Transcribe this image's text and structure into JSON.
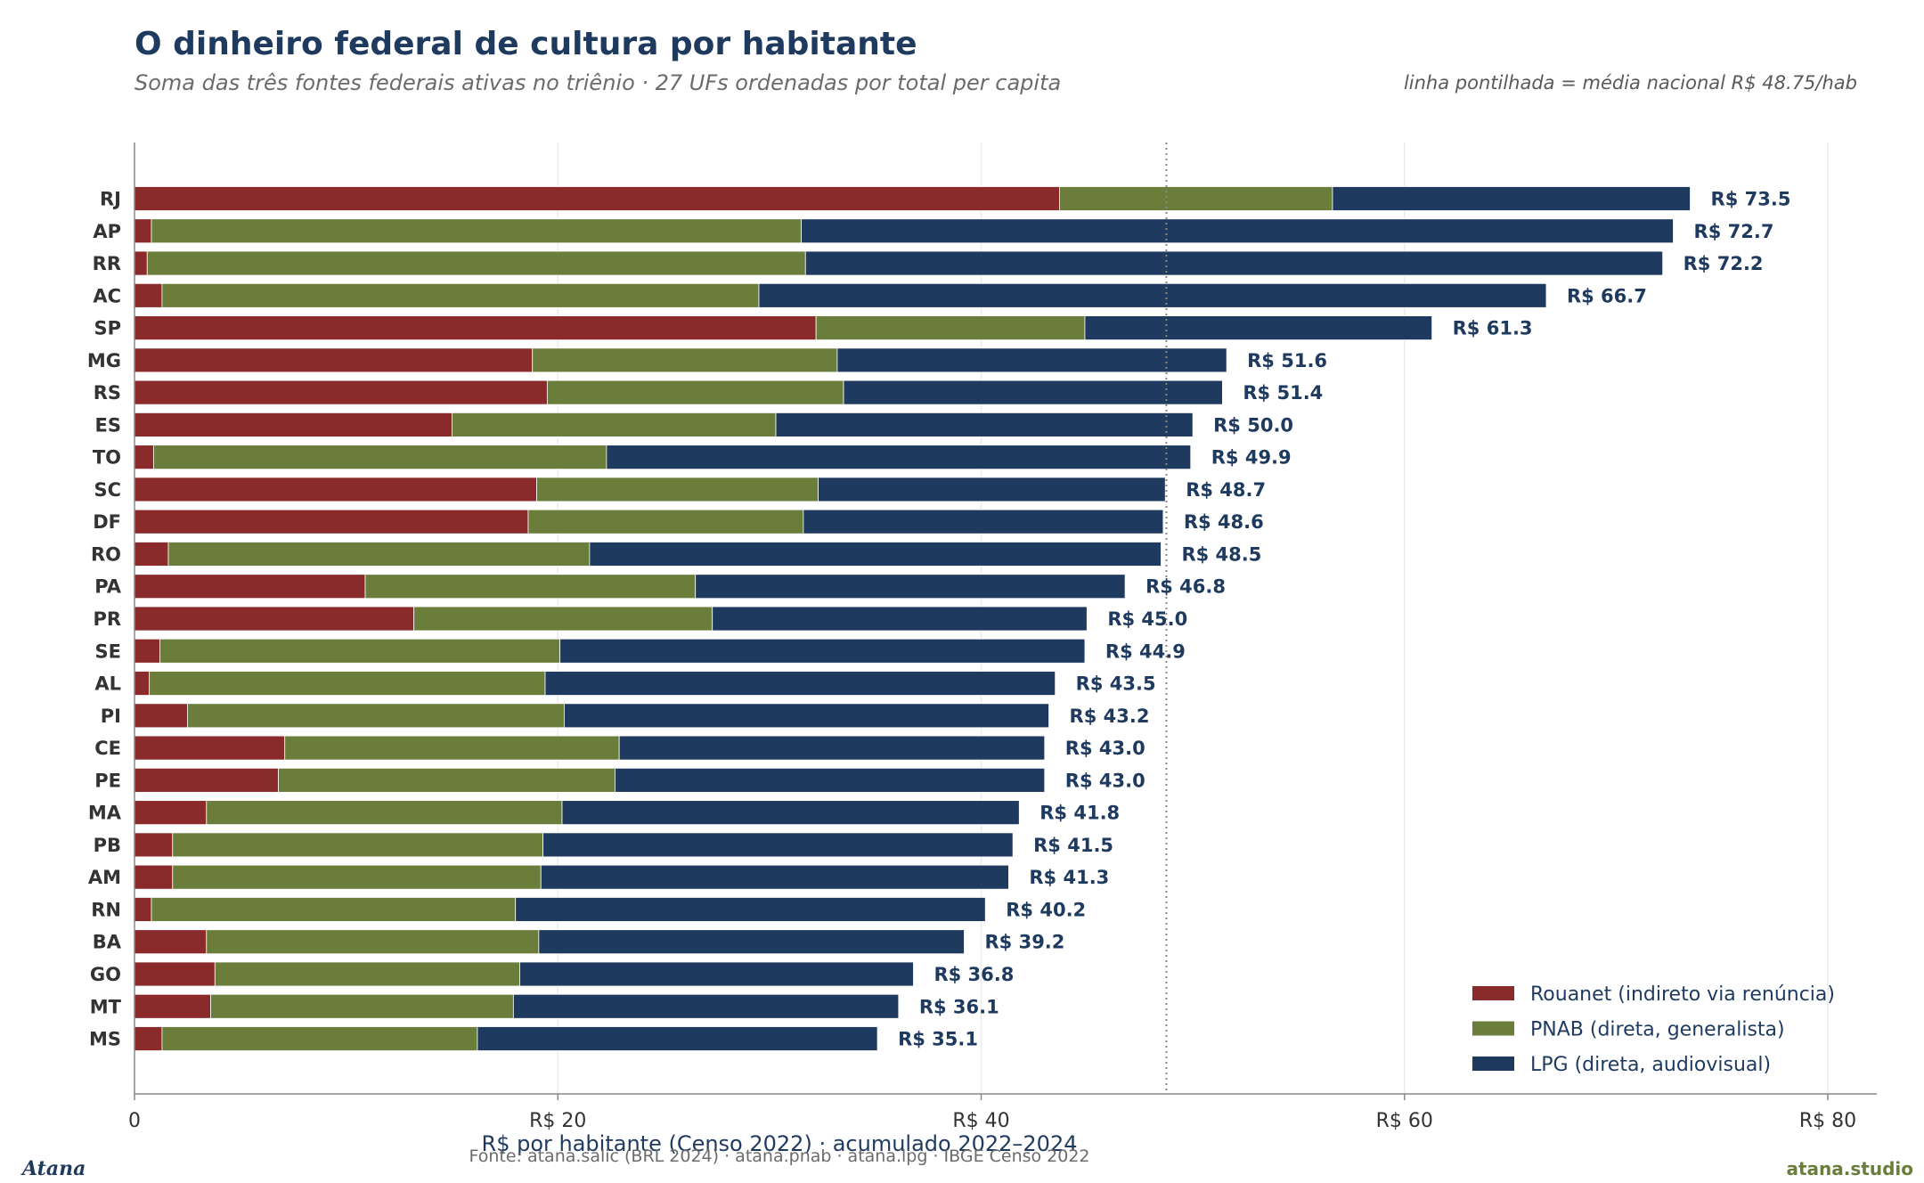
{
  "header": {
    "title": "O dinheiro federal de cultura por habitante",
    "subtitle": "Soma das três fontes federais ativas no triênio · 27 UFs ordenadas por total per capita",
    "note": "linha pontilhada = média nacional R$ 48.75/hab"
  },
  "footer": {
    "source": "Fonte: atana.salic (BRL 2024) · atana.pnab · atana.lpg · IBGE Censo 2022",
    "brand_left": "Atana",
    "brand_right": "atana.studio"
  },
  "colors": {
    "rouanet": "#8b2a2b",
    "pnab": "#6b7d3a",
    "lpg": "#1f3a5f",
    "mean_line": "#888888",
    "grid": "#ececec",
    "axis": "#888888"
  },
  "chart_data": {
    "type": "bar",
    "orientation": "horizontal",
    "stacked": true,
    "title": "O dinheiro federal de cultura por habitante",
    "subtitle": "Soma das três fontes federais ativas no triênio · 27 UFs ordenadas por total per capita",
    "xlabel": "R$ por habitante (Censo 2022) · acumulado 2022–2024",
    "ylabel": "",
    "xlim": [
      0,
      82
    ],
    "x_ticks": [
      0,
      20,
      40,
      60,
      80
    ],
    "x_tick_labels": [
      "0",
      "R$ 20",
      "R$ 40",
      "R$ 60",
      "R$ 80"
    ],
    "grid": "vertical",
    "legend_position": "bottom-right",
    "reference_line": {
      "value": 48.75
    },
    "categories": [
      "RJ",
      "AP",
      "RR",
      "AC",
      "SP",
      "MG",
      "RS",
      "ES",
      "TO",
      "SC",
      "DF",
      "RO",
      "PA",
      "PR",
      "SE",
      "AL",
      "PI",
      "CE",
      "PE",
      "MA",
      "PB",
      "AM",
      "RN",
      "BA",
      "GO",
      "MT",
      "MS"
    ],
    "series": [
      {
        "name": "Rouanet (indireto via renúncia)",
        "values": [
          43.7,
          0.8,
          0.6,
          1.3,
          32.2,
          18.8,
          19.5,
          15.0,
          0.9,
          19.0,
          18.6,
          1.6,
          10.9,
          13.2,
          1.2,
          0.7,
          2.5,
          7.1,
          6.8,
          3.4,
          1.8,
          1.8,
          0.8,
          3.4,
          3.8,
          3.6,
          1.3
        ]
      },
      {
        "name": "PNAB (direta, generalista)",
        "values": [
          12.9,
          30.7,
          31.1,
          28.2,
          12.7,
          14.4,
          14.0,
          15.3,
          21.4,
          13.3,
          13.0,
          19.9,
          15.6,
          14.1,
          18.9,
          18.7,
          17.8,
          15.8,
          15.9,
          16.8,
          17.5,
          17.4,
          17.2,
          15.7,
          14.4,
          14.3,
          14.9
        ]
      },
      {
        "name": "LPG (direta, audiovisual)",
        "values": [
          16.9,
          41.2,
          40.5,
          37.2,
          16.4,
          18.4,
          17.9,
          19.7,
          27.6,
          16.4,
          17.0,
          27.0,
          20.3,
          17.7,
          24.8,
          24.1,
          22.9,
          20.1,
          20.3,
          21.6,
          22.2,
          22.1,
          22.2,
          20.1,
          18.6,
          18.2,
          18.9
        ]
      }
    ],
    "totals": [
      73.5,
      72.7,
      72.2,
      66.7,
      61.3,
      51.6,
      51.4,
      50.0,
      49.9,
      48.7,
      48.6,
      48.5,
      46.8,
      45.0,
      44.9,
      43.5,
      43.2,
      43.0,
      43.0,
      41.8,
      41.5,
      41.3,
      40.2,
      39.2,
      36.8,
      36.1,
      35.1
    ],
    "total_labels": [
      "R$ 73.5",
      "R$ 72.7",
      "R$ 72.2",
      "R$ 66.7",
      "R$ 61.3",
      "R$ 51.6",
      "R$ 51.4",
      "R$ 50.0",
      "R$ 49.9",
      "R$ 48.7",
      "R$ 48.6",
      "R$ 48.5",
      "R$ 46.8",
      "R$ 45.0",
      "R$ 44.9",
      "R$ 43.5",
      "R$ 43.2",
      "R$ 43.0",
      "R$ 43.0",
      "R$ 41.8",
      "R$ 41.5",
      "R$ 41.3",
      "R$ 40.2",
      "R$ 39.2",
      "R$ 36.8",
      "R$ 36.1",
      "R$ 35.1"
    ]
  }
}
